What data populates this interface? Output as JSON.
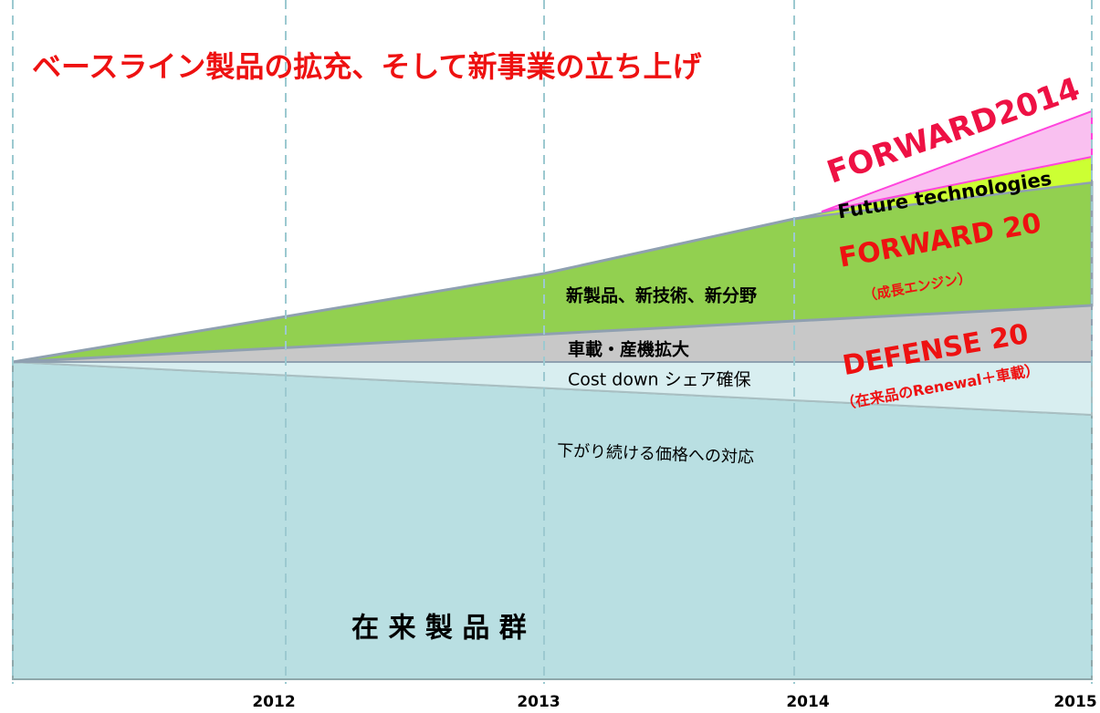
{
  "title": "ベースライン製品の拡充、そして新事業の立ち上げ",
  "years": [
    "2012",
    "2013",
    "2014",
    "2015"
  ],
  "labels": {
    "forward2014": "FORWARD2014",
    "future": "Future technologies",
    "forward20": "FORWARD 20",
    "forward20_sub": "（成長エンジン）",
    "new_products": "新製品、新技術、新分野",
    "expansion": "車載・産機拡大",
    "cost_down": "Cost down シェア確保",
    "defense20": "DEFENSE 20",
    "defense20_sub": "（在来品のRenewal＋車載）",
    "price": "下がり続ける価格への対応",
    "legacy": "在 来 製 品 群"
  }
}
